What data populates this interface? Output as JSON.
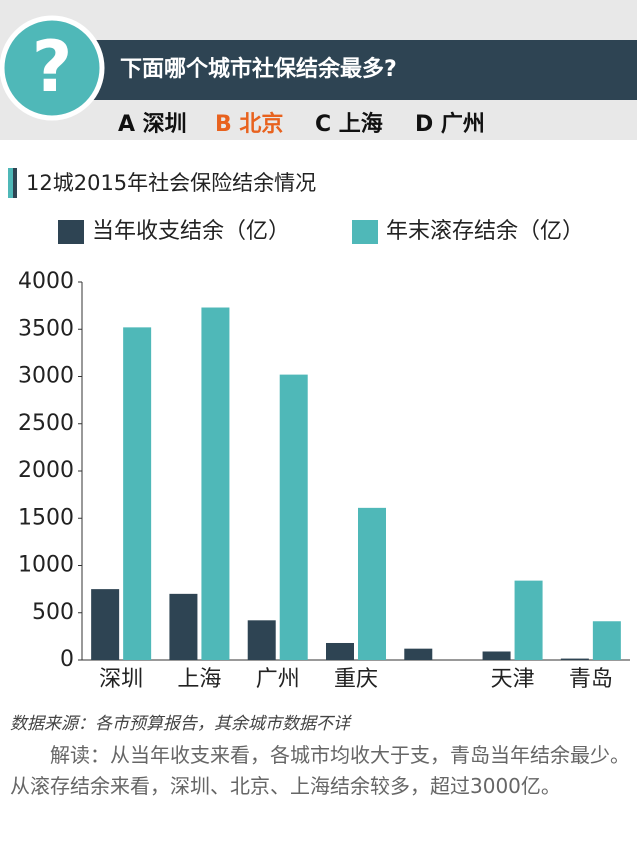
{
  "header": {
    "question": "下面哪个城市社保结余最多?",
    "icon": "?",
    "options": [
      "A 深圳",
      "B 北京",
      "C 上海",
      "D 广州"
    ],
    "highlight_option": 1
  },
  "chart_data": {
    "type": "bar",
    "title": "12城2015年社会保险结余情况",
    "categories": [
      "深圳",
      "上海",
      "广州",
      "重庆",
      null,
      "天津",
      "青岛"
    ],
    "series": [
      {
        "name": "当年收支结余（亿）",
        "color": "#2e4453",
        "values": [
          750,
          700,
          420,
          180,
          120,
          90,
          15
        ]
      },
      {
        "name": "年末滚存结余（亿）",
        "color": "#4fb8b8",
        "values": [
          3520,
          3730,
          3020,
          1610,
          null,
          840,
          410
        ]
      }
    ],
    "ylim": [
      0,
      4000
    ],
    "yticks": [
      0,
      500,
      1000,
      1500,
      2000,
      2500,
      3000,
      3500,
      4000
    ],
    "grid": false
  },
  "source": "数据来源：各市预算报告，其余城市数据不详",
  "analysis": "解读：从当年收支来看，各城市均收大于支，青岛当年结余最少。从滚存结余来看，深圳、北京、上海结余较多，超过3000亿。"
}
